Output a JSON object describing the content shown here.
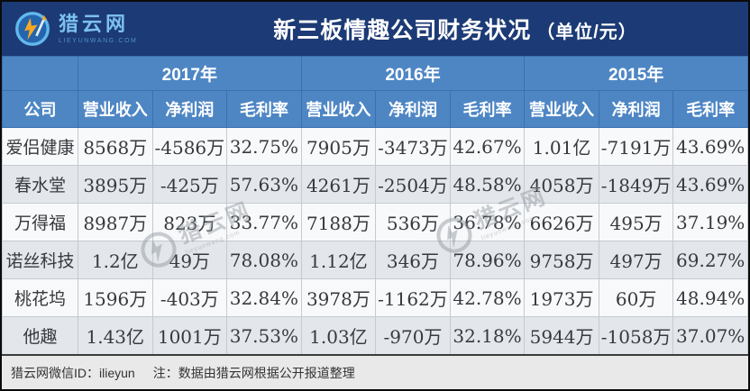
{
  "logo": {
    "name": "猎云网",
    "domain": "LIEYUNWANG.COM"
  },
  "title": {
    "main": "新三板情趣公司财务状况",
    "unit": "（单位/元）"
  },
  "table": {
    "company_header": "公司",
    "year_groups": [
      "2017年",
      "2016年",
      "2015年"
    ],
    "metric_headers": [
      "营业收入",
      "净利润",
      "毛利率"
    ],
    "rows": [
      {
        "company": "爱侣健康",
        "values": [
          "8568万",
          "-4586万",
          "32.75%",
          "7905万",
          "-3473万",
          "42.67%",
          "1.01亿",
          "-7191万",
          "43.69%"
        ]
      },
      {
        "company": "春水堂",
        "values": [
          "3895万",
          "-425万",
          "57.63%",
          "4261万",
          "-2504万",
          "48.58%",
          "4058万",
          "-1849万",
          "43.69%"
        ]
      },
      {
        "company": "万得福",
        "values": [
          "8987万",
          "823万",
          "33.77%",
          "7188万",
          "536万",
          "36.78%",
          "6626万",
          "495万",
          "37.19%"
        ]
      },
      {
        "company": "诺丝科技",
        "values": [
          "1.2亿",
          "49万",
          "78.08%",
          "1.12亿",
          "346万",
          "78.96%",
          "9758万",
          "497万",
          "69.27%"
        ]
      },
      {
        "company": "桃花坞",
        "values": [
          "1596万",
          "-403万",
          "32.84%",
          "3978万",
          "-1162万",
          "42.78%",
          "1973万",
          "60万",
          "48.94%"
        ]
      },
      {
        "company": "他趣",
        "values": [
          "1.43亿",
          "1001万",
          "37.53%",
          "1.03亿",
          "-970万",
          "32.18%",
          "5944万",
          "-1058万",
          "37.07%"
        ]
      }
    ]
  },
  "footer": {
    "wechat": "猎云网微信ID：ilieyun",
    "note": "注：数据由猎云网根据公开报道整理"
  },
  "watermark": {
    "text": "猎云网",
    "subtext": "lieyunwang.com"
  },
  "colors": {
    "titlebar_bg": "#1c3a75",
    "header_bg": "#4e86c4",
    "stripe_bg": "#e3e6ea",
    "row_bg": "#f8f9fa",
    "logo_accent": "#7cc0ef",
    "bolt_orange": "#f7a823"
  }
}
